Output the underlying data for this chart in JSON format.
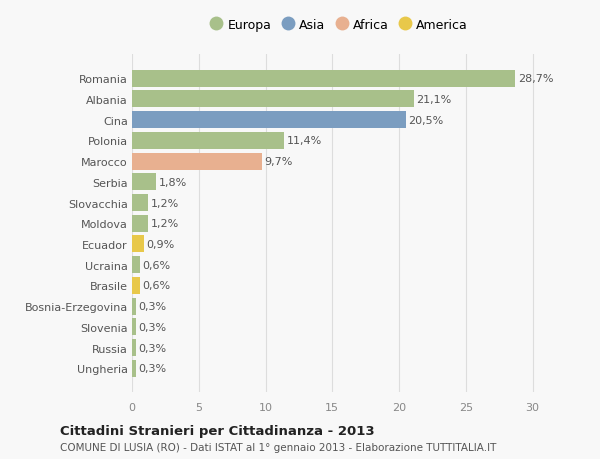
{
  "categories": [
    "Romania",
    "Albania",
    "Cina",
    "Polonia",
    "Marocco",
    "Serbia",
    "Slovacchia",
    "Moldova",
    "Ecuador",
    "Ucraina",
    "Brasile",
    "Bosnia-Erzegovina",
    "Slovenia",
    "Russia",
    "Ungheria"
  ],
  "values": [
    28.7,
    21.1,
    20.5,
    11.4,
    9.7,
    1.8,
    1.2,
    1.2,
    0.9,
    0.6,
    0.6,
    0.3,
    0.3,
    0.3,
    0.3
  ],
  "colors": [
    "#a8c08a",
    "#a8c08a",
    "#7b9dc0",
    "#a8c08a",
    "#e8b090",
    "#a8c08a",
    "#a8c08a",
    "#a8c08a",
    "#e8c84a",
    "#a8c08a",
    "#e8c84a",
    "#a8c08a",
    "#a8c08a",
    "#a8c08a",
    "#a8c08a"
  ],
  "labels": [
    "28,7%",
    "21,1%",
    "20,5%",
    "11,4%",
    "9,7%",
    "1,8%",
    "1,2%",
    "1,2%",
    "0,9%",
    "0,6%",
    "0,6%",
    "0,3%",
    "0,3%",
    "0,3%",
    "0,3%"
  ],
  "legend_labels": [
    "Europa",
    "Asia",
    "Africa",
    "America"
  ],
  "legend_colors": [
    "#a8c08a",
    "#7b9dc0",
    "#e8b090",
    "#e8c84a"
  ],
  "title": "Cittadini Stranieri per Cittadinanza - 2013",
  "subtitle": "COMUNE DI LUSIA (RO) - Dati ISTAT al 1° gennaio 2013 - Elaborazione TUTTITALIA.IT",
  "xlim": [
    0,
    31
  ],
  "xticks": [
    0,
    5,
    10,
    15,
    20,
    25,
    30
  ],
  "background_color": "#f8f8f8",
  "bar_height": 0.82,
  "label_fontsize": 8,
  "tick_fontsize": 8,
  "ytick_fontsize": 8
}
